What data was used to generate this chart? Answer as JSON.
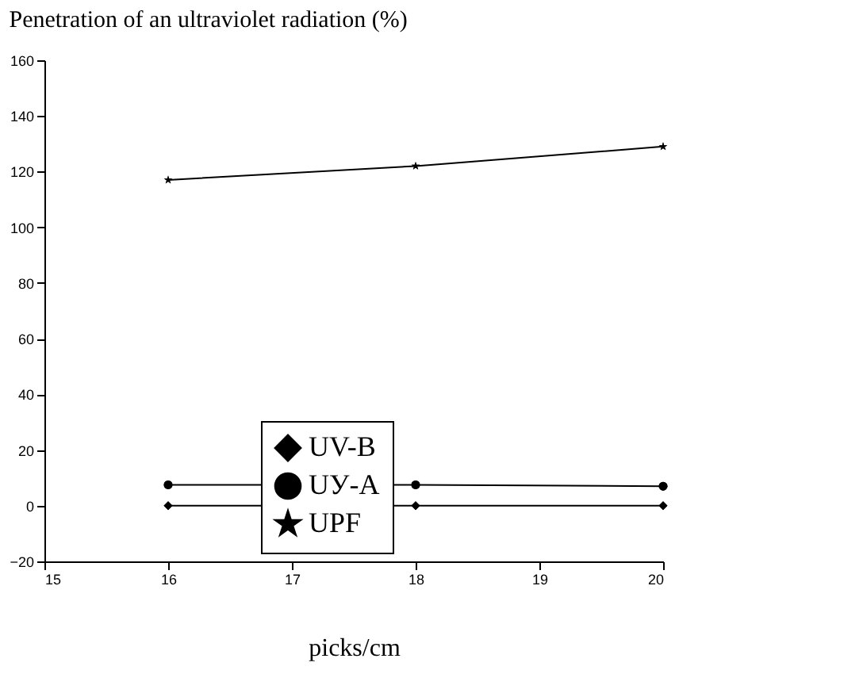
{
  "chart_data": {
    "type": "line",
    "title": "Penetration of an ultraviolet    radiation (%)",
    "xlabel": "picks/cm",
    "x": [
      16,
      18,
      20
    ],
    "series": [
      {
        "name": "UV-B",
        "color": "#000000",
        "values": [
          0,
          0,
          0
        ],
        "marker": "diamond"
      },
      {
        "name": "UУ-A",
        "color": "#000000",
        "values": [
          7.5,
          7.5,
          7
        ],
        "marker": "circle"
      },
      {
        "name": "UPF",
        "color": "#000000",
        "values": [
          117,
          122,
          129
        ],
        "marker": "star"
      }
    ],
    "xlim": [
      15,
      20
    ],
    "xticks": [
      15,
      16,
      17,
      18,
      19,
      20
    ],
    "ylim": [
      -20,
      160
    ],
    "yticks": [
      -20,
      0,
      20,
      40,
      60,
      80,
      100,
      120,
      140,
      160
    ],
    "grid": false,
    "legend": "bottom",
    "line_style": "solid"
  }
}
